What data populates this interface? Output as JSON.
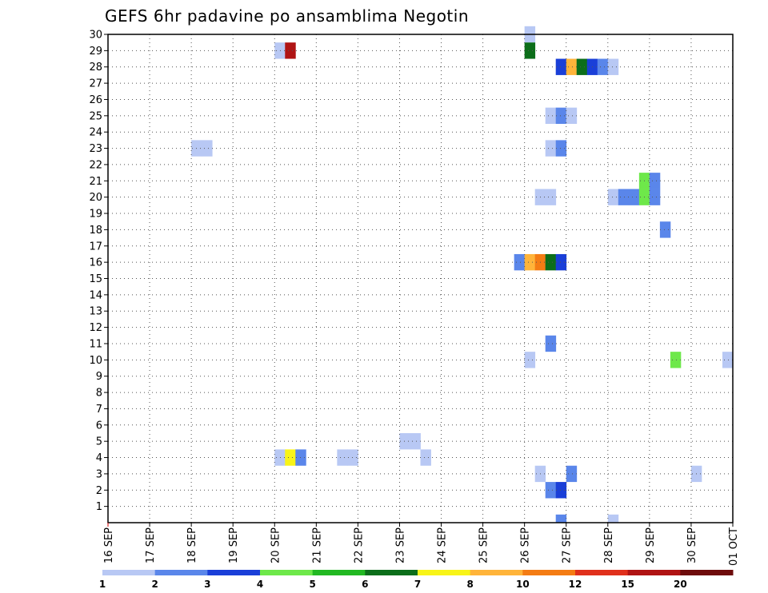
{
  "chart_data": {
    "type": "heatmap",
    "title": "GEFS 6hr padavine po ansamblima Negotin",
    "xlabel": "",
    "ylabel": "",
    "x_tick_labels": [
      "16 SEP",
      "17 SEP",
      "18 SEP",
      "19 SEP",
      "20 SEP",
      "21 SEP",
      "22 SEP",
      "23 SEP",
      "24 SEP",
      "25 SEP",
      "26 SEP",
      "27 SEP",
      "28 SEP",
      "29 SEP",
      "30 SEP",
      "01 OCT"
    ],
    "y_ticks": [
      1,
      2,
      3,
      4,
      5,
      6,
      7,
      8,
      9,
      10,
      11,
      12,
      13,
      14,
      15,
      16,
      17,
      18,
      19,
      20,
      21,
      22,
      23,
      24,
      25,
      26,
      27,
      28,
      29,
      30
    ],
    "grid": true,
    "x_unit": "6-hour step (0 = 16 SEP 00Z)",
    "color_levels": [
      1,
      2,
      3,
      4,
      5,
      6,
      7,
      8,
      10,
      12,
      15,
      20
    ],
    "colorbar_labels": [
      "1",
      "2",
      "3",
      "4",
      "5",
      "6",
      "7",
      "8",
      "10",
      "12",
      "15",
      "20"
    ],
    "colors": [
      "#b8c8f4",
      "#5a86ea",
      "#1a3fd8",
      "#6ee84a",
      "#22b822",
      "#0c6e1a",
      "#f8f418",
      "#ffb43a",
      "#f47c14",
      "#e0301c",
      "#b01414",
      "#6e0c0c"
    ],
    "cells": [
      {
        "x": 40,
        "y": 30,
        "v": 1
      },
      {
        "x": 16,
        "y": 29,
        "v": 1
      },
      {
        "x": 17,
        "y": 29,
        "v": 15
      },
      {
        "x": 40,
        "y": 29,
        "v": 6
      },
      {
        "x": 43,
        "y": 28,
        "v": 3
      },
      {
        "x": 44,
        "y": 28,
        "v": 8
      },
      {
        "x": 45,
        "y": 28,
        "v": 6
      },
      {
        "x": 46,
        "y": 28,
        "v": 3
      },
      {
        "x": 47,
        "y": 28,
        "v": 2
      },
      {
        "x": 48,
        "y": 28,
        "v": 1
      },
      {
        "x": 42,
        "y": 25,
        "v": 1
      },
      {
        "x": 43,
        "y": 25,
        "v": 2
      },
      {
        "x": 44,
        "y": 25,
        "v": 1
      },
      {
        "x": 8,
        "y": 23,
        "v": 1
      },
      {
        "x": 9,
        "y": 23,
        "v": 1
      },
      {
        "x": 42,
        "y": 23,
        "v": 1
      },
      {
        "x": 43,
        "y": 23,
        "v": 2
      },
      {
        "x": 51,
        "y": 21,
        "v": 4
      },
      {
        "x": 52,
        "y": 21,
        "v": 2
      },
      {
        "x": 41,
        "y": 20,
        "v": 1
      },
      {
        "x": 42,
        "y": 20,
        "v": 1
      },
      {
        "x": 48,
        "y": 20,
        "v": 1
      },
      {
        "x": 49,
        "y": 20,
        "v": 2
      },
      {
        "x": 50,
        "y": 20,
        "v": 2
      },
      {
        "x": 51,
        "y": 20,
        "v": 4
      },
      {
        "x": 52,
        "y": 20,
        "v": 2
      },
      {
        "x": 53,
        "y": 18,
        "v": 2
      },
      {
        "x": 39,
        "y": 16,
        "v": 2
      },
      {
        "x": 40,
        "y": 16,
        "v": 8
      },
      {
        "x": 41,
        "y": 16,
        "v": 10
      },
      {
        "x": 42,
        "y": 16,
        "v": 6
      },
      {
        "x": 43,
        "y": 16,
        "v": 3
      },
      {
        "x": 42,
        "y": 11,
        "v": 2
      },
      {
        "x": 40,
        "y": 10,
        "v": 1
      },
      {
        "x": 54,
        "y": 10,
        "v": 4
      },
      {
        "x": 59,
        "y": 10,
        "v": 1
      },
      {
        "x": 28,
        "y": 5,
        "v": 1
      },
      {
        "x": 29,
        "y": 5,
        "v": 1
      },
      {
        "x": 16,
        "y": 4,
        "v": 1
      },
      {
        "x": 17,
        "y": 4,
        "v": 7
      },
      {
        "x": 18,
        "y": 4,
        "v": 2
      },
      {
        "x": 22,
        "y": 4,
        "v": 1
      },
      {
        "x": 23,
        "y": 4,
        "v": 1
      },
      {
        "x": 30,
        "y": 4,
        "v": 1
      },
      {
        "x": 41,
        "y": 3,
        "v": 1
      },
      {
        "x": 44,
        "y": 3,
        "v": 2
      },
      {
        "x": 56,
        "y": 3,
        "v": 1
      },
      {
        "x": 42,
        "y": 2,
        "v": 2
      },
      {
        "x": 43,
        "y": 2,
        "v": 3
      },
      {
        "x": 43,
        "y": 0,
        "v": 2
      },
      {
        "x": 48,
        "y": 0,
        "v": 1
      }
    ]
  }
}
